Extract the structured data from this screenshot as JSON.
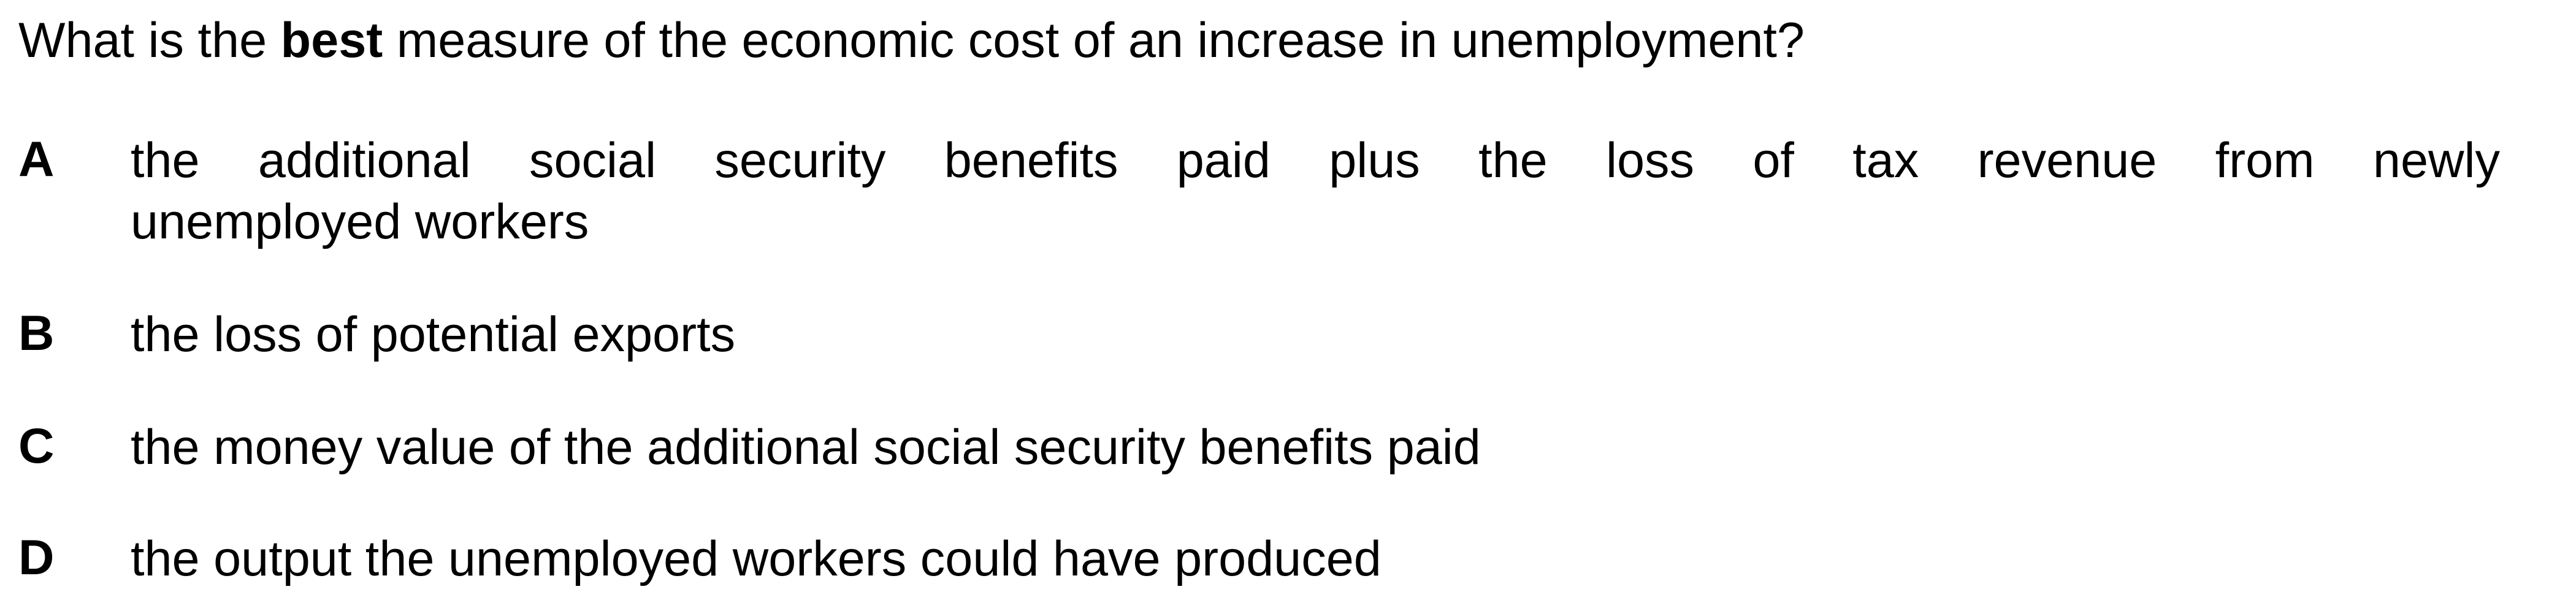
{
  "question": {
    "prefix": "What is the ",
    "emphasis": "best",
    "suffix": " measure of the economic cost of an increase in unemployment?"
  },
  "options": [
    {
      "letter": "A",
      "line1": "the additional social security benefits paid plus the loss of tax revenue from newly",
      "line2": "unemployed workers"
    },
    {
      "letter": "B",
      "text": "the loss of potential exports"
    },
    {
      "letter": "C",
      "text": "the money value of the additional social security benefits paid"
    },
    {
      "letter": "D",
      "text": "the output the unemployed workers could have produced"
    }
  ]
}
